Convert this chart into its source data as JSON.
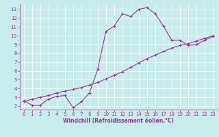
{
  "xlabel": "Windchill (Refroidissement éolien,°C)",
  "bg_color": "#c8ecec",
  "line_color": "#993399",
  "grid_color": "#ffffff",
  "xlim": [
    -0.5,
    23.5
  ],
  "ylim": [
    1.6,
    13.6
  ],
  "xticks": [
    0,
    1,
    2,
    3,
    4,
    5,
    6,
    7,
    8,
    9,
    10,
    11,
    12,
    13,
    14,
    15,
    16,
    17,
    18,
    19,
    20,
    21,
    22,
    23
  ],
  "yticks": [
    2,
    3,
    4,
    5,
    6,
    7,
    8,
    9,
    10,
    11,
    12,
    13
  ],
  "line1_x": [
    0,
    1,
    2,
    3,
    4,
    5,
    6,
    7,
    8,
    9,
    10,
    11,
    12,
    13,
    14,
    15,
    16,
    17,
    18,
    19,
    20,
    21,
    22,
    23
  ],
  "line1_y": [
    2.6,
    2.1,
    2.1,
    2.8,
    3.1,
    3.2,
    1.8,
    2.5,
    3.5,
    6.2,
    10.5,
    11.1,
    12.5,
    12.2,
    13.0,
    13.2,
    12.5,
    11.1,
    9.5,
    9.5,
    8.9,
    9.0,
    9.5,
    9.9
  ],
  "line2_x": [
    0,
    1,
    2,
    3,
    4,
    5,
    6,
    7,
    8,
    9,
    10,
    11,
    12,
    13,
    14,
    15,
    16,
    17,
    18,
    19,
    20,
    21,
    22,
    23
  ],
  "line2_y": [
    2.5,
    2.8,
    3.0,
    3.2,
    3.5,
    3.7,
    3.9,
    4.1,
    4.4,
    4.7,
    5.1,
    5.5,
    5.9,
    6.4,
    6.9,
    7.4,
    7.8,
    8.2,
    8.6,
    8.9,
    9.1,
    9.4,
    9.7,
    10.0
  ],
  "tick_fontsize": 5.0,
  "xlabel_fontsize": 5.5
}
